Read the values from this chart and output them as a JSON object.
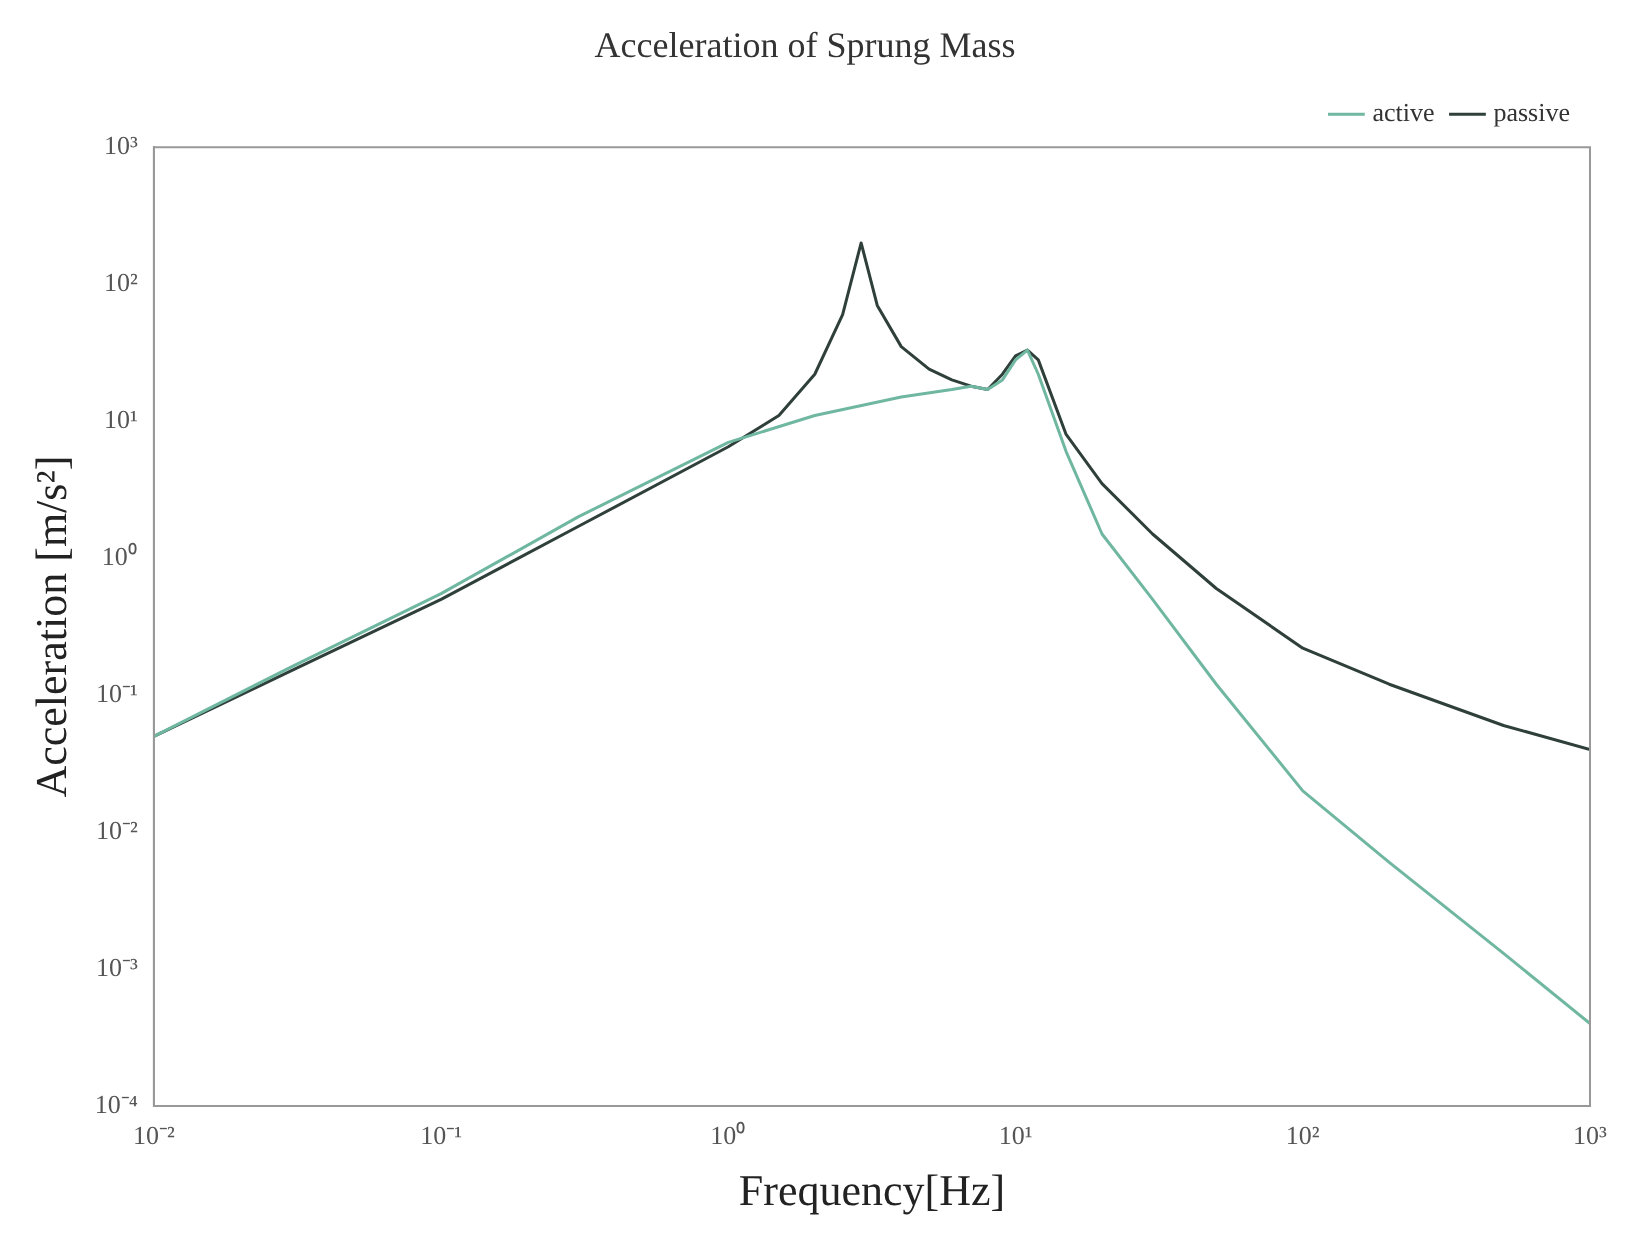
{
  "chart_data": {
    "type": "line",
    "title": "Acceleration of Sprung Mass",
    "xlabel": "Frequency[Hz]",
    "ylabel": "Acceleration [m/s²]",
    "log": "xy",
    "xlim": [
      0.01,
      1000
    ],
    "ylim": [
      0.0001,
      1000
    ],
    "xticks": [
      {
        "value": 0.01,
        "label": "10⁻²"
      },
      {
        "value": 0.1,
        "label": "10⁻¹"
      },
      {
        "value": 1,
        "label": "10⁰"
      },
      {
        "value": 10,
        "label": "10¹"
      },
      {
        "value": 100,
        "label": "10²"
      },
      {
        "value": 1000,
        "label": "10³"
      }
    ],
    "yticks": [
      {
        "value": 0.0001,
        "label": "10⁻⁴"
      },
      {
        "value": 0.001,
        "label": "10⁻³"
      },
      {
        "value": 0.01,
        "label": "10⁻²"
      },
      {
        "value": 0.1,
        "label": "10⁻¹"
      },
      {
        "value": 1,
        "label": "10⁰"
      },
      {
        "value": 10,
        "label": "10¹"
      },
      {
        "value": 100,
        "label": "10²"
      },
      {
        "value": 1000,
        "label": "10³"
      }
    ],
    "grid": false,
    "legend": "top right",
    "line_style": "solid",
    "marker": "none",
    "series": [
      {
        "name": "active",
        "color": "#6fb7a0",
        "x": [
          0.01,
          0.03,
          0.1,
          0.3,
          1,
          2,
          4,
          6,
          7,
          8,
          9,
          10,
          11,
          12,
          15,
          20,
          30,
          50,
          100,
          200,
          500,
          1000
        ],
        "values": [
          0.05,
          0.16,
          0.55,
          2,
          7,
          11,
          15,
          17,
          18,
          17,
          20,
          28,
          33,
          22,
          6,
          1.5,
          0.5,
          0.12,
          0.02,
          0.006,
          0.0013,
          0.0004
        ]
      },
      {
        "name": "passive",
        "color": "#2f3f3a",
        "x": [
          0.01,
          0.03,
          0.1,
          0.3,
          1,
          1.5,
          2,
          2.5,
          2.9,
          3.3,
          4,
          5,
          6,
          7,
          8,
          9,
          10,
          11,
          12,
          15,
          20,
          30,
          50,
          100,
          200,
          500,
          1000
        ],
        "values": [
          0.05,
          0.15,
          0.5,
          1.7,
          6.5,
          11,
          22,
          60,
          200,
          70,
          35,
          24,
          20,
          18,
          17,
          22,
          30,
          33,
          28,
          8,
          3.5,
          1.5,
          0.6,
          0.22,
          0.12,
          0.06,
          0.04
        ]
      }
    ]
  }
}
